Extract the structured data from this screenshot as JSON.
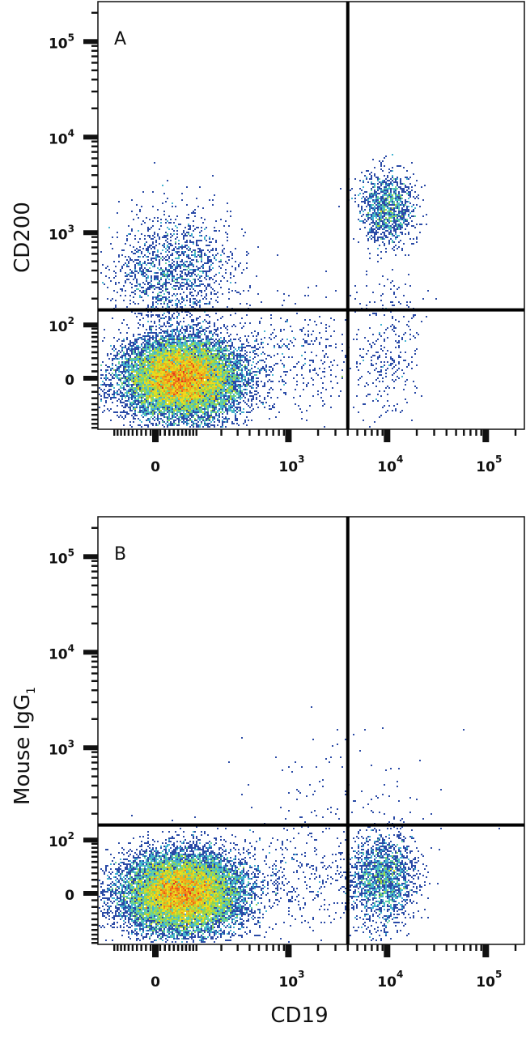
{
  "figure": {
    "shared_xlabel": "CD19"
  },
  "chart_data": [
    {
      "type": "scatter",
      "subtype": "flow-cytometry density plot (biexponential axes)",
      "panel_label": "A",
      "xlabel": "CD19",
      "ylabel": "CD200",
      "ylabel_sub": "",
      "x_ticks": [
        {
          "value": 0,
          "label": "0",
          "sup": ""
        },
        {
          "value": 1000,
          "label": "10",
          "sup": "3"
        },
        {
          "value": 10000,
          "label": "10",
          "sup": "4"
        },
        {
          "value": 100000,
          "label": "10",
          "sup": "5"
        }
      ],
      "y_ticks": [
        {
          "value": 0,
          "label": "0",
          "sup": ""
        },
        {
          "value": 100,
          "label": "10",
          "sup": "2"
        },
        {
          "value": 1000,
          "label": "10",
          "sup": "3"
        },
        {
          "value": 10000,
          "label": "10",
          "sup": "4"
        },
        {
          "value": 100000,
          "label": "10",
          "sup": "5"
        }
      ],
      "quadrant_gate": {
        "x": 4000,
        "y": 150
      },
      "populations": [
        {
          "x_center": 60,
          "y_center": 0,
          "relative_events": 14000
        },
        {
          "x_center": 40,
          "y_center": 400,
          "relative_events": 1500
        },
        {
          "x_center": 10000,
          "y_center": 1800,
          "relative_events": 1200
        },
        {
          "x_center": 10000,
          "y_center": 50,
          "relative_events": 300
        },
        {
          "x_center": 1000,
          "y_center": 30,
          "relative_events": 400
        }
      ],
      "colormap": [
        "#2a4aa6",
        "#3a9bd8",
        "#4fd0c8",
        "#8fd34a",
        "#f2e21c",
        "#ef8a1a",
        "#e3201b"
      ],
      "grid": false
    },
    {
      "type": "scatter",
      "subtype": "flow-cytometry density plot (biexponential axes)",
      "panel_label": "B",
      "xlabel": "CD19",
      "ylabel": "Mouse IgG",
      "ylabel_sub": "1",
      "x_ticks": [
        {
          "value": 0,
          "label": "0",
          "sup": ""
        },
        {
          "value": 1000,
          "label": "10",
          "sup": "3"
        },
        {
          "value": 10000,
          "label": "10",
          "sup": "4"
        },
        {
          "value": 100000,
          "label": "10",
          "sup": "5"
        }
      ],
      "y_ticks": [
        {
          "value": 0,
          "label": "0",
          "sup": ""
        },
        {
          "value": 100,
          "label": "10",
          "sup": "2"
        },
        {
          "value": 1000,
          "label": "10",
          "sup": "3"
        },
        {
          "value": 10000,
          "label": "10",
          "sup": "4"
        },
        {
          "value": 100000,
          "label": "10",
          "sup": "5"
        }
      ],
      "quadrant_gate": {
        "x": 4000,
        "y": 150
      },
      "populations": [
        {
          "x_center": 60,
          "y_center": 0,
          "relative_events": 14000
        },
        {
          "x_center": 9000,
          "y_center": 20,
          "relative_events": 1800
        },
        {
          "x_center": 1000,
          "y_center": 20,
          "relative_events": 400
        },
        {
          "x_center": 3000,
          "y_center": 300,
          "relative_events": 100
        }
      ],
      "colormap": [
        "#2a4aa6",
        "#3a9bd8",
        "#4fd0c8",
        "#8fd34a",
        "#f2e21c",
        "#ef8a1a",
        "#e3201b"
      ],
      "grid": false
    }
  ]
}
